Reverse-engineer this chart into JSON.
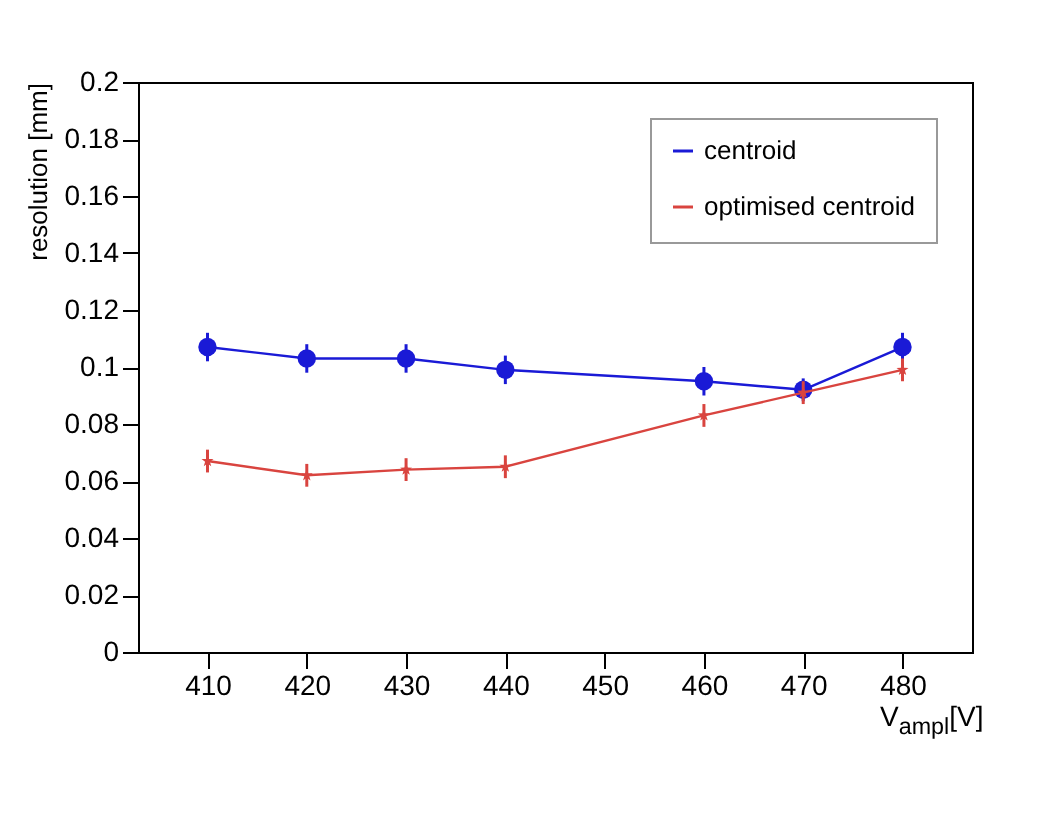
{
  "chart_data": {
    "type": "line",
    "xlabel": "V$_{ampl}$[V]",
    "ylabel": "resolution [mm]",
    "x": [
      410,
      420,
      430,
      440,
      460,
      470,
      480
    ],
    "series": [
      {
        "name": "centroid",
        "color": "#1a1ad6",
        "marker": "circle",
        "values": [
          0.107,
          0.103,
          0.103,
          0.099,
          0.095,
          0.092,
          0.107
        ],
        "errors": [
          0.005,
          0.005,
          0.005,
          0.005,
          0.005,
          0.004,
          0.005
        ]
      },
      {
        "name": "optimised centroid",
        "color": "#d9443f",
        "marker": "star",
        "values": [
          0.067,
          0.062,
          0.064,
          0.065,
          0.083,
          0.091,
          0.099
        ],
        "errors": [
          0.004,
          0.004,
          0.004,
          0.004,
          0.004,
          0.004,
          0.004
        ]
      }
    ],
    "xlim": [
      403,
      487
    ],
    "xticks": [
      410,
      420,
      430,
      440,
      450,
      460,
      470,
      480
    ],
    "ylim": [
      0,
      0.2
    ],
    "yticks": [
      0,
      0.02,
      0.04,
      0.06,
      0.08,
      0.1,
      0.12,
      0.14,
      0.16,
      0.18,
      0.2
    ],
    "grid": false,
    "legend": "top right",
    "line_style": "solid"
  }
}
